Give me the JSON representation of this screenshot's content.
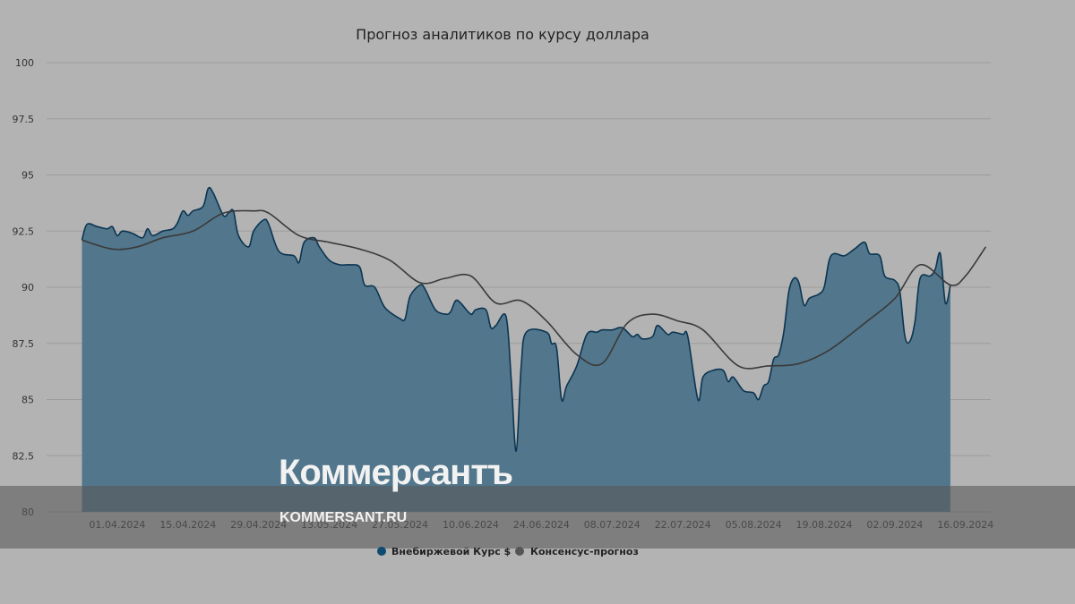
{
  "colors": {
    "background": "#b3b3b3",
    "area_fill": "#4d7389",
    "area_stroke": "#0b3552",
    "forecast_line": "#3a3a3a",
    "legend_series1": "#0e4a70",
    "legend_series2": "#555555"
  },
  "watermark": {
    "brand": "Коммерсантъ",
    "url": "KOMMERSANT.RU"
  },
  "chart_data": {
    "type": "area",
    "title": "Прогноз аналитиков по курсу доллара",
    "xlabel": "",
    "ylabel": "",
    "ylim": [
      80,
      100
    ],
    "yticks": [
      "100",
      "97.5",
      "95",
      "92.5",
      "90",
      "87.5",
      "85",
      "82.5",
      "80"
    ],
    "ytick_values": [
      100,
      97.5,
      95,
      92.5,
      90,
      87.5,
      85,
      82.5,
      80
    ],
    "xlim": [
      "2024-03-18",
      "2024-09-21"
    ],
    "xticks": [
      "01.04.2024",
      "15.04.2024",
      "29.04.2024",
      "13.05.2024",
      "27.05.2024",
      "10.06.2024",
      "24.06.2024",
      "08.07.2024",
      "22.07.2024",
      "05.08.2024",
      "19.08.2024",
      "02.09.2024",
      "16.09.2024"
    ],
    "xtick_dates": [
      "2024-04-01",
      "2024-04-15",
      "2024-04-29",
      "2024-05-13",
      "2024-05-27",
      "2024-06-10",
      "2024-06-24",
      "2024-07-08",
      "2024-07-22",
      "2024-08-05",
      "2024-08-19",
      "2024-09-02",
      "2024-09-16"
    ],
    "grid": true,
    "legend_position": "bottom",
    "series": [
      {
        "name": "Внебиржевой Курс $",
        "kind": "area",
        "points": [
          [
            "2024-03-25",
            92.1
          ],
          [
            "2024-03-26",
            92.8
          ],
          [
            "2024-03-28",
            92.7
          ],
          [
            "2024-03-30",
            92.6
          ],
          [
            "2024-03-31",
            92.7
          ],
          [
            "2024-04-01",
            92.3
          ],
          [
            "2024-04-02",
            92.5
          ],
          [
            "2024-04-04",
            92.4
          ],
          [
            "2024-04-06",
            92.2
          ],
          [
            "2024-04-07",
            92.6
          ],
          [
            "2024-04-08",
            92.3
          ],
          [
            "2024-04-10",
            92.5
          ],
          [
            "2024-04-12",
            92.6
          ],
          [
            "2024-04-13",
            92.9
          ],
          [
            "2024-04-14",
            93.4
          ],
          [
            "2024-04-15",
            93.2
          ],
          [
            "2024-04-16",
            93.4
          ],
          [
            "2024-04-18",
            93.6
          ],
          [
            "2024-04-19",
            94.4
          ],
          [
            "2024-04-20",
            94.2
          ],
          [
            "2024-04-22",
            93.2
          ],
          [
            "2024-04-23",
            93.3
          ],
          [
            "2024-04-24",
            93.4
          ],
          [
            "2024-04-25",
            92.3
          ],
          [
            "2024-04-27",
            91.8
          ],
          [
            "2024-04-28",
            92.5
          ],
          [
            "2024-04-30",
            93.0
          ],
          [
            "2024-05-01",
            92.8
          ],
          [
            "2024-05-03",
            91.6
          ],
          [
            "2024-05-06",
            91.4
          ],
          [
            "2024-05-07",
            91.1
          ],
          [
            "2024-05-08",
            92.0
          ],
          [
            "2024-05-10",
            92.2
          ],
          [
            "2024-05-11",
            91.8
          ],
          [
            "2024-05-13",
            91.2
          ],
          [
            "2024-05-15",
            91.0
          ],
          [
            "2024-05-17",
            91.0
          ],
          [
            "2024-05-19",
            90.9
          ],
          [
            "2024-05-20",
            90.1
          ],
          [
            "2024-05-22",
            90.0
          ],
          [
            "2024-05-24",
            89.1
          ],
          [
            "2024-05-27",
            88.6
          ],
          [
            "2024-05-28",
            88.6
          ],
          [
            "2024-05-29",
            89.6
          ],
          [
            "2024-05-31",
            90.1
          ],
          [
            "2024-06-01",
            89.9
          ],
          [
            "2024-06-03",
            89.0
          ],
          [
            "2024-06-05",
            88.8
          ],
          [
            "2024-06-06",
            88.9
          ],
          [
            "2024-06-07",
            89.4
          ],
          [
            "2024-06-08",
            89.3
          ],
          [
            "2024-06-10",
            88.8
          ],
          [
            "2024-06-11",
            89.0
          ],
          [
            "2024-06-13",
            89.0
          ],
          [
            "2024-06-14",
            88.2
          ],
          [
            "2024-06-15",
            88.3
          ],
          [
            "2024-06-17",
            88.7
          ],
          [
            "2024-06-18",
            86.0
          ],
          [
            "2024-06-19",
            82.7
          ],
          [
            "2024-06-20",
            86.5
          ],
          [
            "2024-06-21",
            88.0
          ],
          [
            "2024-06-25",
            88.0
          ],
          [
            "2024-06-26",
            87.5
          ],
          [
            "2024-06-27",
            87.3
          ],
          [
            "2024-06-28",
            85.0
          ],
          [
            "2024-06-29",
            85.6
          ],
          [
            "2024-07-01",
            86.5
          ],
          [
            "2024-07-03",
            87.9
          ],
          [
            "2024-07-05",
            88.0
          ],
          [
            "2024-07-06",
            88.1
          ],
          [
            "2024-07-08",
            88.1
          ],
          [
            "2024-07-10",
            88.2
          ],
          [
            "2024-07-12",
            87.8
          ],
          [
            "2024-07-13",
            87.9
          ],
          [
            "2024-07-14",
            87.7
          ],
          [
            "2024-07-16",
            87.8
          ],
          [
            "2024-07-17",
            88.3
          ],
          [
            "2024-07-19",
            87.9
          ],
          [
            "2024-07-20",
            88.0
          ],
          [
            "2024-07-22",
            87.9
          ],
          [
            "2024-07-23",
            87.8
          ],
          [
            "2024-07-25",
            85.0
          ],
          [
            "2024-07-26",
            86.0
          ],
          [
            "2024-07-28",
            86.3
          ],
          [
            "2024-07-30",
            86.3
          ],
          [
            "2024-07-31",
            85.8
          ],
          [
            "2024-08-01",
            86.0
          ],
          [
            "2024-08-03",
            85.4
          ],
          [
            "2024-08-05",
            85.3
          ],
          [
            "2024-08-06",
            85.0
          ],
          [
            "2024-08-07",
            85.6
          ],
          [
            "2024-08-08",
            85.8
          ],
          [
            "2024-08-09",
            86.8
          ],
          [
            "2024-08-10",
            87.0
          ],
          [
            "2024-08-11",
            88.0
          ],
          [
            "2024-08-12",
            89.8
          ],
          [
            "2024-08-13",
            90.4
          ],
          [
            "2024-08-14",
            90.2
          ],
          [
            "2024-08-15",
            89.2
          ],
          [
            "2024-08-16",
            89.5
          ],
          [
            "2024-08-17",
            89.6
          ],
          [
            "2024-08-18",
            89.7
          ],
          [
            "2024-08-19",
            90.0
          ],
          [
            "2024-08-20",
            91.2
          ],
          [
            "2024-08-21",
            91.5
          ],
          [
            "2024-08-23",
            91.4
          ],
          [
            "2024-08-25",
            91.7
          ],
          [
            "2024-08-27",
            92.0
          ],
          [
            "2024-08-28",
            91.5
          ],
          [
            "2024-08-30",
            91.4
          ],
          [
            "2024-08-31",
            90.5
          ],
          [
            "2024-09-02",
            90.3
          ],
          [
            "2024-09-03",
            89.8
          ],
          [
            "2024-09-04",
            87.8
          ],
          [
            "2024-09-05",
            87.6
          ],
          [
            "2024-09-06",
            88.5
          ],
          [
            "2024-09-07",
            90.4
          ],
          [
            "2024-09-09",
            90.5
          ],
          [
            "2024-09-10",
            90.8
          ],
          [
            "2024-09-11",
            91.5
          ],
          [
            "2024-09-12",
            89.3
          ],
          [
            "2024-09-13",
            90.1
          ]
        ]
      },
      {
        "name": "Консенсус-прогноз",
        "kind": "line",
        "points": [
          [
            "2024-03-25",
            92.1
          ],
          [
            "2024-03-31",
            91.7
          ],
          [
            "2024-04-05",
            91.8
          ],
          [
            "2024-04-10",
            92.2
          ],
          [
            "2024-04-16",
            92.5
          ],
          [
            "2024-04-22",
            93.3
          ],
          [
            "2024-04-28",
            93.4
          ],
          [
            "2024-05-01",
            93.3
          ],
          [
            "2024-05-07",
            92.3
          ],
          [
            "2024-05-13",
            92.0
          ],
          [
            "2024-05-19",
            91.7
          ],
          [
            "2024-05-25",
            91.2
          ],
          [
            "2024-05-31",
            90.2
          ],
          [
            "2024-06-05",
            90.4
          ],
          [
            "2024-06-10",
            90.5
          ],
          [
            "2024-06-15",
            89.3
          ],
          [
            "2024-06-20",
            89.4
          ],
          [
            "2024-06-25",
            88.5
          ],
          [
            "2024-07-01",
            87.0
          ],
          [
            "2024-07-06",
            86.6
          ],
          [
            "2024-07-11",
            88.4
          ],
          [
            "2024-07-16",
            88.8
          ],
          [
            "2024-07-21",
            88.5
          ],
          [
            "2024-07-26",
            88.1
          ],
          [
            "2024-08-02",
            86.5
          ],
          [
            "2024-08-08",
            86.5
          ],
          [
            "2024-08-14",
            86.6
          ],
          [
            "2024-08-20",
            87.2
          ],
          [
            "2024-08-27",
            88.4
          ],
          [
            "2024-09-02",
            89.5
          ],
          [
            "2024-09-07",
            91.0
          ],
          [
            "2024-09-13",
            90.1
          ],
          [
            "2024-09-16",
            90.5
          ],
          [
            "2024-09-20",
            91.8
          ]
        ]
      }
    ]
  }
}
